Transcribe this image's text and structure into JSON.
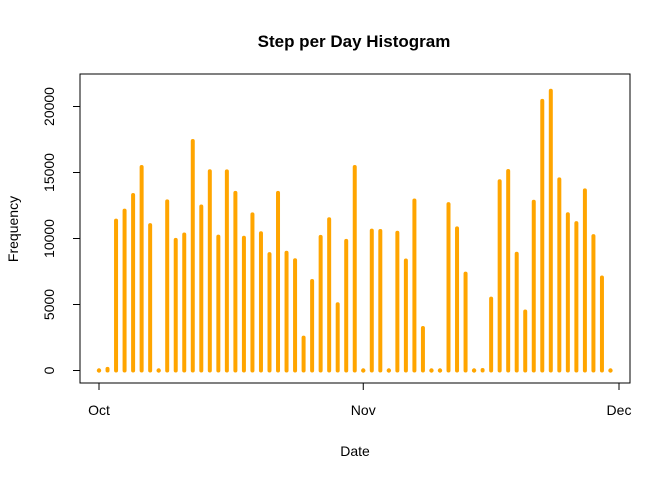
{
  "chart_data": {
    "type": "bar",
    "title": "Step per Day Histogram",
    "xlabel": "Date",
    "ylabel": "Frequency",
    "x_ticks": [
      {
        "label": "Oct",
        "day": 0
      },
      {
        "label": "Nov",
        "day": 31
      },
      {
        "label": "Dec",
        "day": 61
      }
    ],
    "y_ticks": [
      0,
      5000,
      10000,
      15000,
      20000
    ],
    "ylim": [
      0,
      21500
    ],
    "xlim_days": [
      -2,
      62
    ],
    "dates": [
      "2012-10-01",
      "2012-10-02",
      "2012-10-03",
      "2012-10-04",
      "2012-10-05",
      "2012-10-06",
      "2012-10-07",
      "2012-10-08",
      "2012-10-09",
      "2012-10-10",
      "2012-10-11",
      "2012-10-12",
      "2012-10-13",
      "2012-10-14",
      "2012-10-15",
      "2012-10-16",
      "2012-10-17",
      "2012-10-18",
      "2012-10-19",
      "2012-10-20",
      "2012-10-21",
      "2012-10-22",
      "2012-10-23",
      "2012-10-24",
      "2012-10-25",
      "2012-10-26",
      "2012-10-27",
      "2012-10-28",
      "2012-10-29",
      "2012-10-30",
      "2012-10-31",
      "2012-11-01",
      "2012-11-02",
      "2012-11-03",
      "2012-11-04",
      "2012-11-05",
      "2012-11-06",
      "2012-11-07",
      "2012-11-08",
      "2012-11-09",
      "2012-11-10",
      "2012-11-11",
      "2012-11-12",
      "2012-11-13",
      "2012-11-14",
      "2012-11-15",
      "2012-11-16",
      "2012-11-17",
      "2012-11-18",
      "2012-11-19",
      "2012-11-20",
      "2012-11-21",
      "2012-11-22",
      "2012-11-23",
      "2012-11-24",
      "2012-11-25",
      "2012-11-26",
      "2012-11-27",
      "2012-11-28",
      "2012-11-29",
      "2012-11-30"
    ],
    "values": [
      0,
      126,
      11352,
      12116,
      13294,
      15420,
      11015,
      0,
      12811,
      9900,
      10304,
      17382,
      12426,
      15098,
      10139,
      15084,
      13452,
      10056,
      11829,
      10395,
      8821,
      13460,
      8918,
      8355,
      2492,
      6778,
      10119,
      11458,
      5018,
      9819,
      15414,
      0,
      10600,
      10571,
      0,
      10439,
      8334,
      12883,
      3219,
      0,
      0,
      12608,
      10765,
      7336,
      0,
      41,
      5441,
      14339,
      15110,
      8841,
      4472,
      12787,
      20427,
      21194,
      14478,
      11834,
      11162,
      13646,
      10183,
      7047,
      0
    ],
    "bar_color": "#FFA500",
    "grid": false,
    "legend": "none"
  }
}
